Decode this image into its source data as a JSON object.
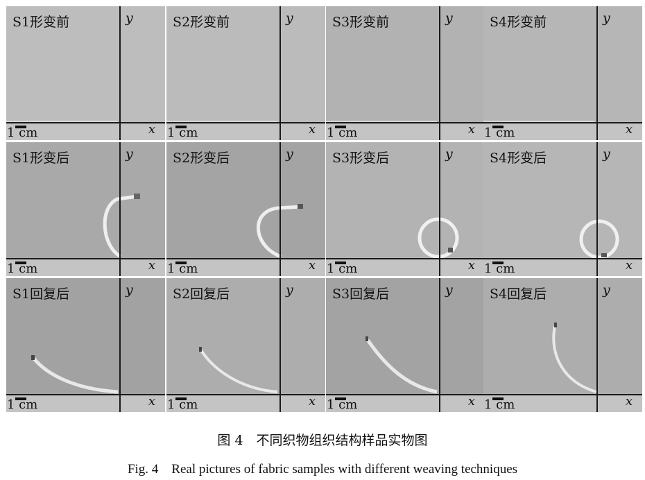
{
  "panels": [
    {
      "label": "S1形变前",
      "y": "y",
      "x": "x",
      "scale": "1 cm"
    },
    {
      "label": "S2形变前",
      "y": "y",
      "x": "x",
      "scale": "1 cm"
    },
    {
      "label": "S3形变前",
      "y": "y",
      "x": "x",
      "scale": "1 cm"
    },
    {
      "label": "S4形变前",
      "y": "y",
      "x": "x",
      "scale": "1 cm"
    },
    {
      "label": "S1形变后",
      "y": "y",
      "x": "x",
      "scale": "1 cm"
    },
    {
      "label": "S2形变后",
      "y": "y",
      "x": "x",
      "scale": "1 cm"
    },
    {
      "label": "S3形变后",
      "y": "y",
      "x": "x",
      "scale": "1 cm"
    },
    {
      "label": "S4形变后",
      "y": "y",
      "x": "x",
      "scale": "1 cm"
    },
    {
      "label": "S1回复后",
      "y": "y",
      "x": "x",
      "scale": "1 cm"
    },
    {
      "label": "S2回复后",
      "y": "y",
      "x": "x",
      "scale": "1 cm"
    },
    {
      "label": "S3回复后",
      "y": "y",
      "x": "x",
      "scale": "1 cm"
    },
    {
      "label": "S4回复后",
      "y": "y",
      "x": "x",
      "scale": "1 cm"
    }
  ],
  "caption_cn": "图 4　不同织物组织结构样品实物图",
  "caption_en": "Fig. 4　Real pictures of fabric samples with different weaving techniques"
}
